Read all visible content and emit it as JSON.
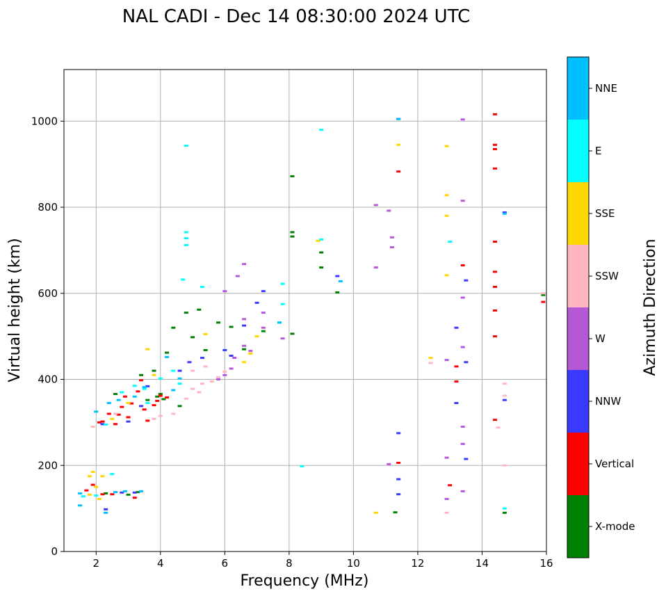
{
  "chart_data": {
    "type": "scatter",
    "title": "NAL CADI - Dec 14 08:30:00 2024 UTC",
    "xlabel": "Frequency (MHz)",
    "ylabel": "Virtual height (km)",
    "xlim": [
      1,
      16
    ],
    "ylim": [
      0,
      1120
    ],
    "xticks": [
      2,
      4,
      6,
      8,
      10,
      12,
      14,
      16
    ],
    "yticks": [
      0,
      200,
      400,
      600,
      800,
      1000
    ],
    "grid": true,
    "colorbar": {
      "label": "Azimuth Direction",
      "categories": [
        "X-mode",
        "Vertical",
        "NNW",
        "W",
        "SSW",
        "SSE",
        "E",
        "NNE"
      ],
      "colors": [
        "#008000",
        "#ff0000",
        "#3a3aff",
        "#b558d6",
        "#ffb6c1",
        "#ffd700",
        "#00ffff",
        "#00bfff"
      ]
    },
    "series": [
      {
        "name": "X-mode",
        "points": [
          [
            2.3,
            135
          ],
          [
            3.0,
            132
          ],
          [
            3.3,
            138
          ],
          [
            3.6,
            352
          ],
          [
            3.9,
            360
          ],
          [
            4.0,
            366
          ],
          [
            4.1,
            354
          ],
          [
            4.2,
            462
          ],
          [
            4.4,
            520
          ],
          [
            4.6,
            338
          ],
          [
            5.0,
            498
          ],
          [
            5.4,
            468
          ],
          [
            5.8,
            532
          ],
          [
            6.2,
            522
          ],
          [
            6.6,
            470
          ],
          [
            7.2,
            512
          ],
          [
            8.1,
            872
          ],
          [
            8.1,
            742
          ],
          [
            8.1,
            732
          ],
          [
            8.1,
            506
          ],
          [
            9.0,
            695
          ],
          [
            9.0,
            660
          ],
          [
            9.5,
            602
          ],
          [
            11.3,
            91
          ],
          [
            14.7,
            90
          ],
          [
            15.9,
            596
          ],
          [
            2.6,
            366
          ],
          [
            3.4,
            410
          ],
          [
            3.8,
            420
          ],
          [
            4.8,
            555
          ],
          [
            5.2,
            562
          ]
        ]
      },
      {
        "name": "Vertical",
        "points": [
          [
            1.7,
            142
          ],
          [
            1.9,
            155
          ],
          [
            2.2,
            133
          ],
          [
            2.5,
            133
          ],
          [
            3.2,
            125
          ],
          [
            2.1,
            300
          ],
          [
            2.4,
            320
          ],
          [
            2.6,
            296
          ],
          [
            2.8,
            336
          ],
          [
            2.9,
            360
          ],
          [
            3.0,
            312
          ],
          [
            3.1,
            344
          ],
          [
            3.3,
            372
          ],
          [
            3.4,
            398
          ],
          [
            3.6,
            304
          ],
          [
            3.8,
            340
          ],
          [
            4.0,
            362
          ],
          [
            4.2,
            358
          ],
          [
            11.4,
            206
          ],
          [
            11.4,
            883
          ],
          [
            13.0,
            154
          ],
          [
            13.2,
            430
          ],
          [
            13.2,
            395
          ],
          [
            13.4,
            665
          ],
          [
            14.4,
            306
          ],
          [
            14.4,
            500
          ],
          [
            14.4,
            560
          ],
          [
            14.4,
            720
          ],
          [
            14.4,
            615
          ],
          [
            14.4,
            650
          ],
          [
            14.4,
            890
          ],
          [
            14.4,
            935
          ],
          [
            14.4,
            945
          ],
          [
            14.4,
            1016
          ],
          [
            15.9,
            580
          ],
          [
            2.7,
            318
          ],
          [
            3.5,
            330
          ],
          [
            2.2,
            302
          ],
          [
            3.9,
            350
          ]
        ]
      },
      {
        "name": "NNW",
        "points": [
          [
            2.3,
            98
          ],
          [
            2.8,
            137
          ],
          [
            3.2,
            137
          ],
          [
            2.2,
            296
          ],
          [
            3.0,
            302
          ],
          [
            3.6,
            384
          ],
          [
            4.6,
            420
          ],
          [
            5.3,
            450
          ],
          [
            6.2,
            455
          ],
          [
            6.6,
            525
          ],
          [
            7.0,
            578
          ],
          [
            7.2,
            605
          ],
          [
            9.5,
            640
          ],
          [
            11.4,
            133
          ],
          [
            11.4,
            168
          ],
          [
            11.4,
            275
          ],
          [
            11.4,
            1005
          ],
          [
            13.2,
            520
          ],
          [
            13.2,
            345
          ],
          [
            13.5,
            215
          ],
          [
            13.5,
            440
          ],
          [
            13.5,
            630
          ],
          [
            14.7,
            352
          ],
          [
            14.7,
            788
          ],
          [
            6.0,
            468
          ],
          [
            4.9,
            440
          ],
          [
            3.4,
            338
          ]
        ]
      },
      {
        "name": "W",
        "points": [
          [
            6.0,
            410
          ],
          [
            6.3,
            450
          ],
          [
            6.6,
            478
          ],
          [
            6.6,
            540
          ],
          [
            6.8,
            466
          ],
          [
            7.2,
            555
          ],
          [
            7.2,
            520
          ],
          [
            6.6,
            668
          ],
          [
            6.4,
            640
          ],
          [
            6.0,
            605
          ],
          [
            7.8,
            495
          ],
          [
            10.7,
            660
          ],
          [
            10.7,
            805
          ],
          [
            11.1,
            792
          ],
          [
            11.2,
            730
          ],
          [
            11.2,
            707
          ],
          [
            11.1,
            203
          ],
          [
            12.9,
            218
          ],
          [
            12.9,
            122
          ],
          [
            12.9,
            445
          ],
          [
            13.4,
            140
          ],
          [
            13.4,
            250
          ],
          [
            13.4,
            290
          ],
          [
            13.4,
            475
          ],
          [
            13.4,
            590
          ],
          [
            13.4,
            815
          ],
          [
            13.4,
            1004
          ],
          [
            5.8,
            400
          ],
          [
            6.2,
            425
          ]
        ]
      },
      {
        "name": "SSW",
        "points": [
          [
            5.0,
            378
          ],
          [
            5.3,
            390
          ],
          [
            5.6,
            395
          ],
          [
            5.8,
            405
          ],
          [
            6.0,
            418
          ],
          [
            5.4,
            430
          ],
          [
            4.4,
            320
          ],
          [
            4.0,
            315
          ],
          [
            1.9,
            290
          ],
          [
            2.6,
            320
          ],
          [
            3.8,
            308
          ],
          [
            12.4,
            438
          ],
          [
            12.9,
            90
          ],
          [
            14.5,
            288
          ],
          [
            14.7,
            390
          ],
          [
            14.7,
            362
          ],
          [
            14.7,
            200
          ],
          [
            15.9,
            600
          ],
          [
            5.2,
            370
          ],
          [
            4.8,
            355
          ],
          [
            5.0,
            420
          ]
        ]
      },
      {
        "name": "SSE",
        "points": [
          [
            1.9,
            185
          ],
          [
            2.0,
            150
          ],
          [
            1.8,
            132
          ],
          [
            2.1,
            122
          ],
          [
            2.2,
            175
          ],
          [
            1.8,
            175
          ],
          [
            2.5,
            308
          ],
          [
            3.6,
            470
          ],
          [
            3.8,
            410
          ],
          [
            6.6,
            440
          ],
          [
            7.0,
            500
          ],
          [
            8.9,
            722
          ],
          [
            10.7,
            90
          ],
          [
            11.4,
            945
          ],
          [
            12.4,
            450
          ],
          [
            12.9,
            942
          ],
          [
            12.9,
            828
          ],
          [
            12.9,
            780
          ],
          [
            12.9,
            642
          ],
          [
            5.4,
            505
          ],
          [
            6.8,
            460
          ],
          [
            3.0,
            345
          ]
        ]
      },
      {
        "name": "E",
        "points": [
          [
            2.5,
            180
          ],
          [
            2.0,
            130
          ],
          [
            1.6,
            128
          ],
          [
            2.3,
            295
          ],
          [
            3.2,
            385
          ],
          [
            3.6,
            345
          ],
          [
            4.0,
            402
          ],
          [
            4.4,
            420
          ],
          [
            4.8,
            943
          ],
          [
            4.8,
            742
          ],
          [
            4.8,
            728
          ],
          [
            4.8,
            712
          ],
          [
            4.7,
            632
          ],
          [
            5.3,
            615
          ],
          [
            7.8,
            622
          ],
          [
            7.8,
            575
          ],
          [
            7.7,
            532
          ],
          [
            9.0,
            980
          ],
          [
            9.0,
            725
          ],
          [
            8.4,
            198
          ],
          [
            13.0,
            720
          ],
          [
            14.7,
            100
          ],
          [
            4.6,
            390
          ],
          [
            3.5,
            378
          ],
          [
            2.8,
            370
          ]
        ]
      },
      {
        "name": "NNE",
        "points": [
          [
            1.5,
            107
          ],
          [
            1.5,
            135
          ],
          [
            2.3,
            90
          ],
          [
            2.6,
            138
          ],
          [
            2.9,
            140
          ],
          [
            3.4,
            140
          ],
          [
            2.0,
            325
          ],
          [
            2.7,
            352
          ],
          [
            3.5,
            382
          ],
          [
            4.2,
            452
          ],
          [
            4.6,
            402
          ],
          [
            7.7,
            532
          ],
          [
            9.6,
            628
          ],
          [
            11.4,
            1005
          ],
          [
            14.7,
            785
          ],
          [
            3.2,
            360
          ],
          [
            2.4,
            345
          ],
          [
            4.4,
            375
          ]
        ]
      }
    ]
  }
}
